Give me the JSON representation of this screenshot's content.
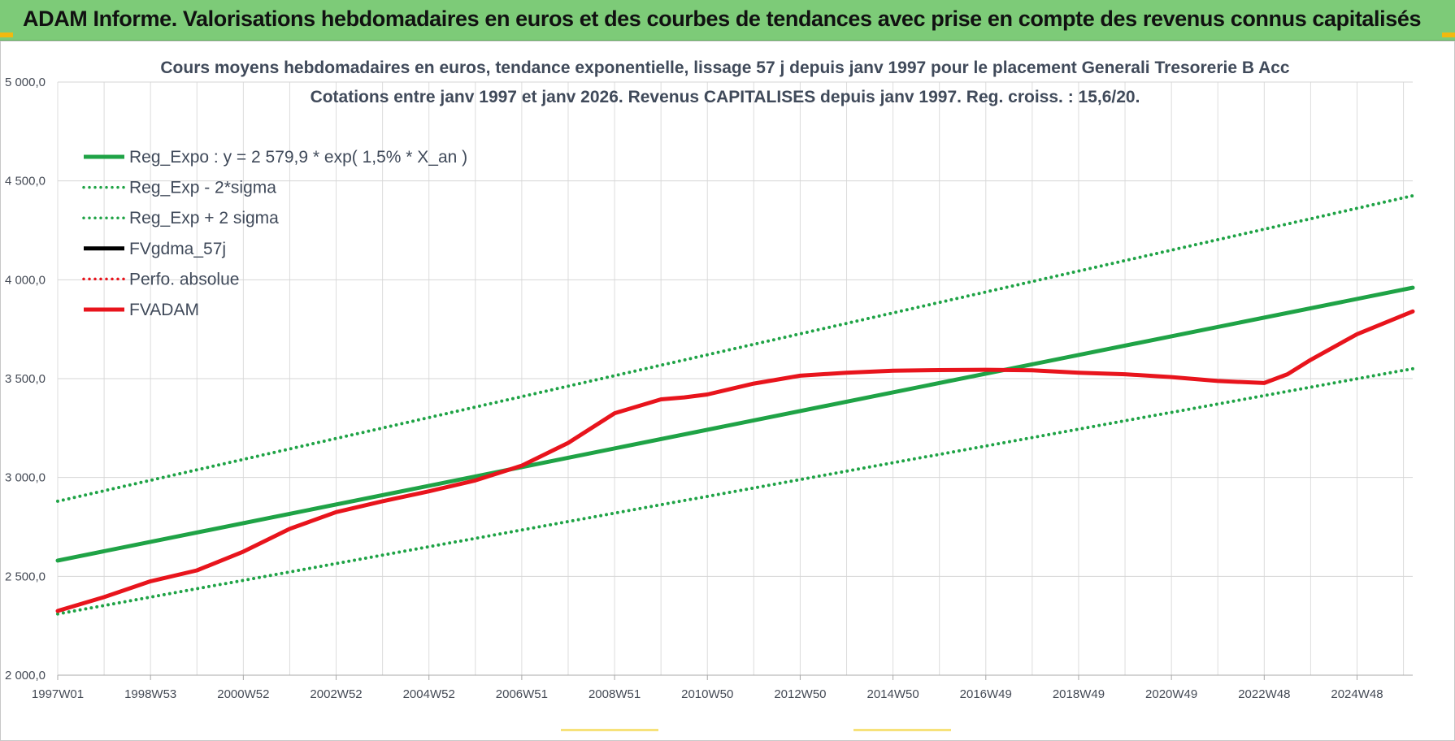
{
  "header": {
    "title": "ADAM Informe. Valorisations hebdomadaires en euros et des courbes de tendances avec prise en compte des revenus connus capitalisés"
  },
  "chart_data": {
    "type": "line",
    "title": "Cours moyens hebdomadaires en euros, tendance exponentielle, lissage 57 j depuis janv 1997  pour le placement Generali Tresorerie B Acc",
    "subtitle": "Cotations entre janv 1997 et janv 2026. Revenus CAPITALISES depuis janv 1997. Reg. croiss. : 15,6/20.",
    "xlabel": "",
    "ylabel": "",
    "xlim": [
      1997.0,
      2026.2
    ],
    "ylim": [
      2000,
      5000
    ],
    "grid": true,
    "legend_position": "top-left",
    "x_ticks": [
      {
        "x": 1997.0,
        "label": "1997W01"
      },
      {
        "x": 1999.0,
        "label": "1998W53"
      },
      {
        "x": 2001.0,
        "label": "2000W52"
      },
      {
        "x": 2003.0,
        "label": "2002W52"
      },
      {
        "x": 2005.0,
        "label": "2004W52"
      },
      {
        "x": 2007.0,
        "label": "2006W51"
      },
      {
        "x": 2009.0,
        "label": "2008W51"
      },
      {
        "x": 2011.0,
        "label": "2010W50"
      },
      {
        "x": 2013.0,
        "label": "2012W50"
      },
      {
        "x": 2015.0,
        "label": "2014W50"
      },
      {
        "x": 2017.0,
        "label": "2016W49"
      },
      {
        "x": 2019.0,
        "label": "2018W49"
      },
      {
        "x": 2021.0,
        "label": "2020W49"
      },
      {
        "x": 2023.0,
        "label": "2022W48"
      },
      {
        "x": 2025.0,
        "label": "2024W48"
      }
    ],
    "y_ticks": [
      {
        "y": 2000,
        "label": "2 000,0"
      },
      {
        "y": 2500,
        "label": "2 500,0"
      },
      {
        "y": 3000,
        "label": "3 000,0"
      },
      {
        "y": 3500,
        "label": "3 500,0"
      },
      {
        "y": 4000,
        "label": "4 000,0"
      },
      {
        "y": 4500,
        "label": "4 500,0"
      },
      {
        "y": 5000,
        "label": "5 000,0"
      }
    ],
    "series": [
      {
        "name": "Reg_Expo : y = 2 579,9 * exp( 1,5% *  X_an )",
        "color": "#1fa346",
        "style": "solid",
        "width": 5,
        "x": [
          1997.0,
          2026.2
        ],
        "y": [
          2580,
          3960
        ]
      },
      {
        "name": "Reg_Exp - 2*sigma",
        "color": "#1fa346",
        "style": "dotted",
        "width": 4,
        "x": [
          1997.0,
          2026.2
        ],
        "y": [
          2310,
          3550
        ]
      },
      {
        "name": "Reg_Exp + 2 sigma",
        "color": "#1fa346",
        "style": "dotted",
        "width": 4,
        "x": [
          1997.0,
          2026.2
        ],
        "y": [
          2880,
          4425
        ]
      },
      {
        "name": "FVgdma_57j",
        "color": "#000000",
        "style": "solid",
        "width": 3,
        "x": [],
        "y": []
      },
      {
        "name": "Perfo. absolue",
        "color": "#e8141c",
        "style": "dotted",
        "width": 3,
        "x": [],
        "y": []
      },
      {
        "name": "FVADAM",
        "color": "#e8141c",
        "style": "solid",
        "width": 5,
        "x": [
          1997.0,
          1998.0,
          1999.0,
          2000.0,
          2001.0,
          2002.0,
          2003.0,
          2004.0,
          2005.0,
          2006.0,
          2007.0,
          2008.0,
          2009.0,
          2010.0,
          2010.5,
          2011.0,
          2012.0,
          2013.0,
          2014.0,
          2015.0,
          2016.0,
          2017.0,
          2018.0,
          2019.0,
          2020.0,
          2021.0,
          2022.0,
          2023.0,
          2023.5,
          2024.0,
          2025.0,
          2026.2
        ],
        "y": [
          2325,
          2395,
          2475,
          2530,
          2625,
          2740,
          2825,
          2880,
          2930,
          2985,
          3060,
          3175,
          3325,
          3395,
          3405,
          3420,
          3475,
          3515,
          3530,
          3540,
          3543,
          3545,
          3542,
          3530,
          3522,
          3508,
          3488,
          3478,
          3522,
          3595,
          3725,
          3840
        ]
      }
    ]
  }
}
